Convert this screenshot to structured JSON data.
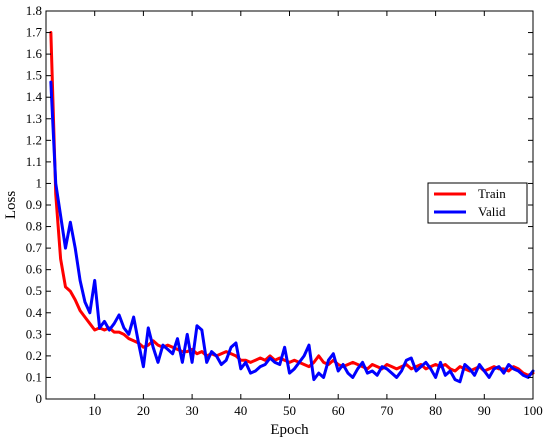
{
  "chart_data": {
    "type": "line",
    "xlabel": "Epoch",
    "ylabel": "Loss",
    "xlim": [
      0,
      100
    ],
    "ylim": [
      0,
      1.8
    ],
    "xticks": [
      10,
      20,
      30,
      40,
      50,
      60,
      70,
      80,
      90,
      100
    ],
    "yticks": [
      0,
      0.1,
      0.2,
      0.3,
      0.4,
      0.5,
      0.6,
      0.7,
      0.8,
      0.9,
      1,
      1.1,
      1.2,
      1.3,
      1.4,
      1.5,
      1.6,
      1.7,
      1.8
    ],
    "legend_position": "right-middle",
    "grid": false,
    "x": [
      1,
      2,
      3,
      4,
      5,
      6,
      7,
      8,
      9,
      10,
      11,
      12,
      13,
      14,
      15,
      16,
      17,
      18,
      19,
      20,
      21,
      22,
      23,
      24,
      25,
      26,
      27,
      28,
      29,
      30,
      31,
      32,
      33,
      34,
      35,
      36,
      37,
      38,
      39,
      40,
      41,
      42,
      43,
      44,
      45,
      46,
      47,
      48,
      49,
      50,
      51,
      52,
      53,
      54,
      55,
      56,
      57,
      58,
      59,
      60,
      61,
      62,
      63,
      64,
      65,
      66,
      67,
      68,
      69,
      70,
      71,
      72,
      73,
      74,
      75,
      76,
      77,
      78,
      79,
      80,
      81,
      82,
      83,
      84,
      85,
      86,
      87,
      88,
      89,
      90,
      91,
      92,
      93,
      94,
      95,
      96,
      97,
      98,
      99,
      100
    ],
    "series": [
      {
        "name": "Train",
        "color": "#ff0000",
        "values": [
          1.7,
          0.95,
          0.65,
          0.52,
          0.5,
          0.46,
          0.41,
          0.38,
          0.35,
          0.32,
          0.33,
          0.32,
          0.33,
          0.31,
          0.31,
          0.3,
          0.28,
          0.27,
          0.26,
          0.24,
          0.25,
          0.27,
          0.25,
          0.24,
          0.25,
          0.24,
          0.23,
          0.22,
          0.22,
          0.23,
          0.21,
          0.22,
          0.2,
          0.21,
          0.2,
          0.21,
          0.22,
          0.21,
          0.2,
          0.18,
          0.18,
          0.17,
          0.18,
          0.19,
          0.18,
          0.2,
          0.18,
          0.19,
          0.18,
          0.17,
          0.18,
          0.17,
          0.16,
          0.15,
          0.17,
          0.2,
          0.17,
          0.16,
          0.18,
          0.16,
          0.15,
          0.16,
          0.17,
          0.16,
          0.15,
          0.14,
          0.16,
          0.15,
          0.14,
          0.16,
          0.15,
          0.14,
          0.15,
          0.16,
          0.14,
          0.15,
          0.16,
          0.14,
          0.15,
          0.16,
          0.15,
          0.16,
          0.14,
          0.13,
          0.15,
          0.14,
          0.13,
          0.14,
          0.15,
          0.13,
          0.14,
          0.15,
          0.14,
          0.14,
          0.13,
          0.15,
          0.14,
          0.12,
          0.11,
          0.12
        ]
      },
      {
        "name": "Valid",
        "color": "#0000ff",
        "values": [
          1.47,
          1.0,
          0.85,
          0.7,
          0.82,
          0.7,
          0.55,
          0.45,
          0.4,
          0.55,
          0.33,
          0.36,
          0.32,
          0.35,
          0.39,
          0.33,
          0.3,
          0.38,
          0.26,
          0.15,
          0.33,
          0.24,
          0.17,
          0.25,
          0.23,
          0.21,
          0.28,
          0.17,
          0.3,
          0.17,
          0.34,
          0.32,
          0.17,
          0.22,
          0.2,
          0.16,
          0.18,
          0.24,
          0.26,
          0.14,
          0.17,
          0.12,
          0.13,
          0.15,
          0.16,
          0.19,
          0.17,
          0.16,
          0.24,
          0.12,
          0.14,
          0.17,
          0.2,
          0.25,
          0.09,
          0.12,
          0.1,
          0.18,
          0.21,
          0.13,
          0.16,
          0.12,
          0.1,
          0.14,
          0.17,
          0.12,
          0.13,
          0.11,
          0.15,
          0.14,
          0.12,
          0.1,
          0.13,
          0.18,
          0.19,
          0.13,
          0.15,
          0.17,
          0.14,
          0.1,
          0.17,
          0.11,
          0.13,
          0.09,
          0.08,
          0.16,
          0.14,
          0.11,
          0.16,
          0.13,
          0.1,
          0.14,
          0.15,
          0.12,
          0.16,
          0.14,
          0.13,
          0.11,
          0.1,
          0.13
        ]
      }
    ]
  }
}
